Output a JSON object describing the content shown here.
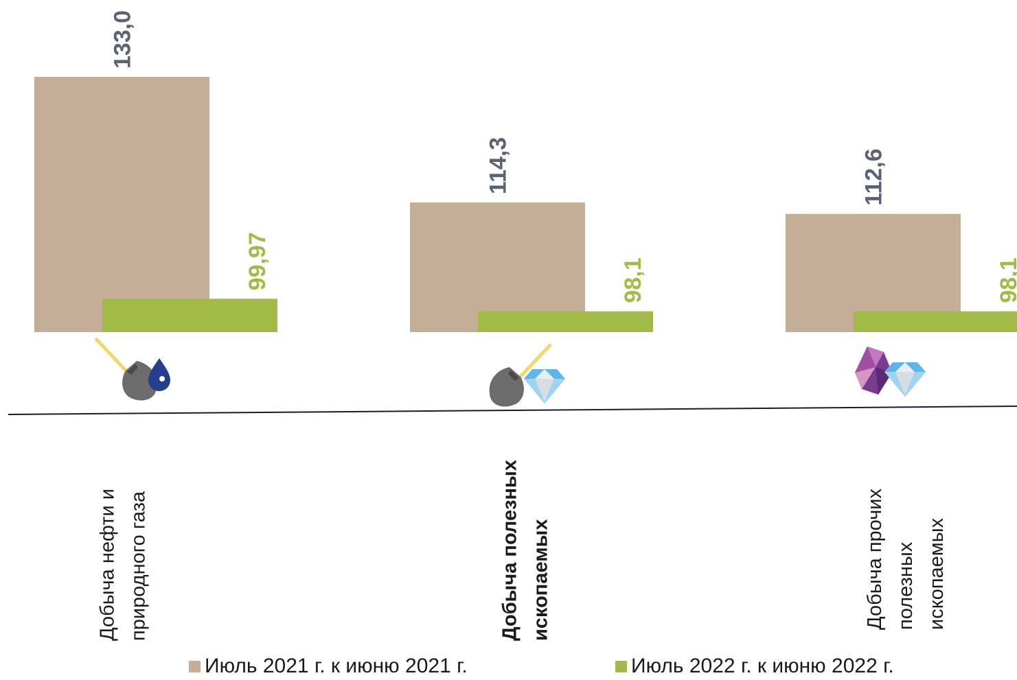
{
  "colors": {
    "series_2021": "#c4ae98",
    "series_2022": "#a2bb48",
    "value_label_2021": "#596373",
    "value_label_2022": "#a2bb48",
    "axis_line": "#1a1a2e"
  },
  "chart_data": {
    "type": "bar",
    "categories": [
      "Добыча нефти и природного газа",
      "Добыча полезных ископаемых",
      "Добыча прочих полезных ископаемых"
    ],
    "category_lines": [
      [
        "Добыча  нефти и",
        "природного газа"
      ],
      [
        "Добыча полезных",
        "ископаемых"
      ],
      [
        "Добыча прочих",
        "полезных",
        "ископаемых"
      ]
    ],
    "category_icons": [
      [
        "shovel-icon",
        "oil-drop-icon"
      ],
      [
        "shovel-icon",
        "diamond-icon"
      ],
      [
        "gemstone-icon",
        "diamond-icon"
      ]
    ],
    "series": [
      {
        "name": "Июль 2021 г. к июню 2021 г.",
        "values": [
          133.0,
          114.3,
          112.6
        ],
        "labels": [
          "133,0",
          "114,3",
          "112,6"
        ]
      },
      {
        "name": "Июль 2022 г. к июню 2022 г.",
        "values": [
          99.97,
          98.1,
          98.1
        ],
        "labels": [
          "99,97",
          "98,1",
          "98,1"
        ]
      }
    ],
    "ylim": [
      95,
      133
    ],
    "xlabel": "",
    "ylabel": "",
    "grid": false,
    "legend_position": "bottom"
  }
}
